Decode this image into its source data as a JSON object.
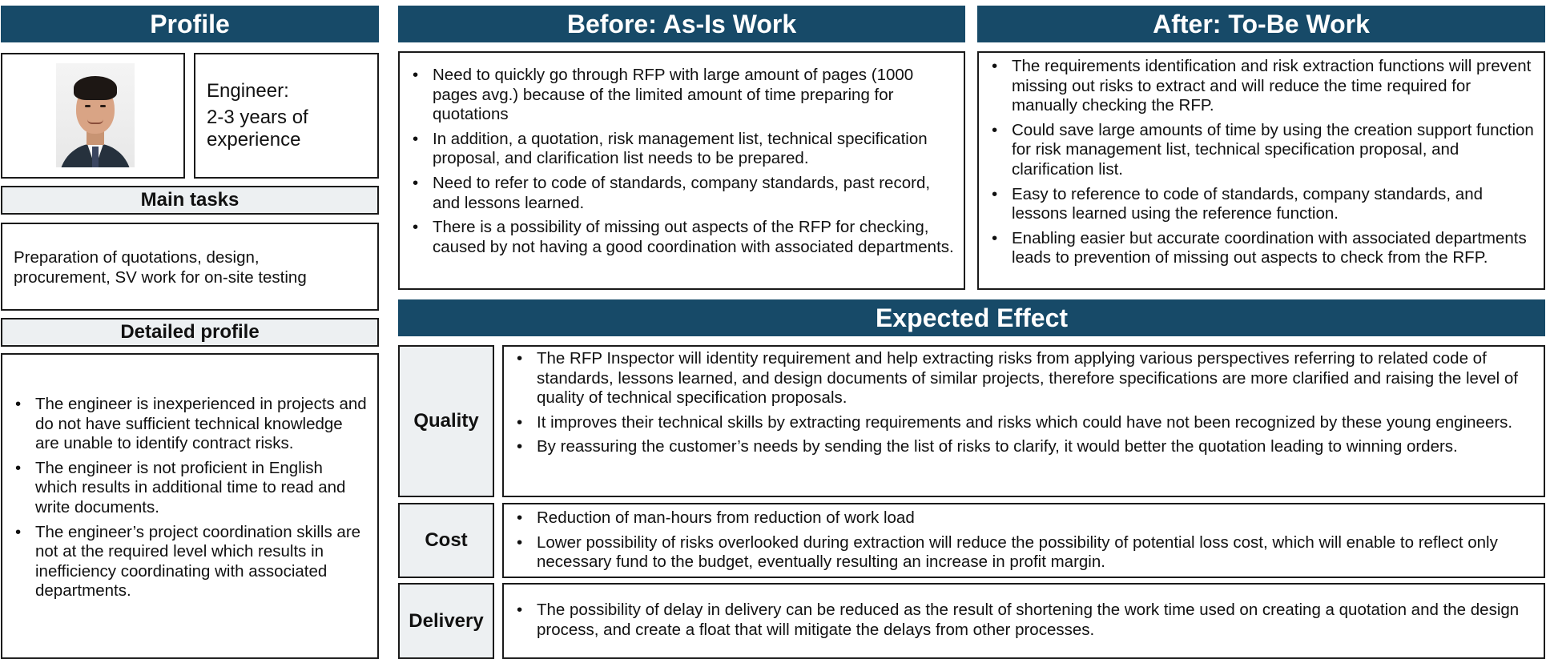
{
  "profile": {
    "header": "Profile",
    "engineer_label": "Engineer:",
    "experience": "2-3 years of experience",
    "main_tasks_header": "Main tasks",
    "main_tasks_text": "Preparation of quotations, design, procurement, SV work for on-site testing",
    "detailed_header": "Detailed profile",
    "detailed_items": [
      "The engineer is inexperienced in projects and  do not have sufficient technical knowledge are unable to identify contract risks.",
      "The engineer is not proficient in English which results in additional time to read and write documents.",
      "The engineer’s project coordination skills are not at the required level which results in inefficiency coordinating with associated departments."
    ]
  },
  "before": {
    "header": "Before: As-Is Work",
    "items": [
      "Need to quickly go through RFP with large amount of pages (1000 pages avg.) because of the limited amount of time preparing for quotations",
      "In addition, a quotation, risk management list, technical specification proposal, and clarification list needs to be prepared.",
      "Need to refer to code of standards, company standards, past record, and lessons learned.",
      "There is a possibility of missing out aspects of the RFP for checking, caused by not having a good coordination with associated departments."
    ]
  },
  "after": {
    "header": "After: To-Be Work",
    "items": [
      "The requirements identification and risk extraction functions will prevent missing out risks to extract and will reduce the time required for manually checking the RFP.",
      "Could save large amounts of time by using the creation support function for risk management list, technical specification proposal, and clarification list.",
      "Easy to reference to code of standards, company standards, and lessons learned using the reference function.",
      "Enabling easier but accurate coordination with associated departments leads to prevention of missing out aspects to check from the RFP."
    ]
  },
  "effect": {
    "header": "Expected Effect",
    "quality": {
      "label": "Quality",
      "items": [
        "The RFP Inspector will identity requirement and help extracting risks from applying various perspectives referring to related code of standards, lessons learned, and design documents of similar projects, therefore specifications are more clarified and raising the level of quality of technical specification proposals.",
        "It improves their technical skills by extracting requirements and risks which could have not been recognized by these young engineers.",
        "By reassuring the customer’s needs by sending the list of risks to clarify, it would better the quotation leading to winning orders."
      ]
    },
    "cost": {
      "label": "Cost",
      "items": [
        "Reduction of man-hours from reduction of work load",
        "Lower possibility of risks overlooked during extraction will reduce the possibility of potential loss cost, which will enable to reflect only necessary fund to the budget, eventually resulting an increase in profit margin."
      ]
    },
    "delivery": {
      "label": "Delivery",
      "items": [
        "The possibility of delay in delivery can be reduced as the result of shortening the work time used on creating a quotation and the design process, and create a float that will mitigate the delays from other processes."
      ]
    }
  }
}
